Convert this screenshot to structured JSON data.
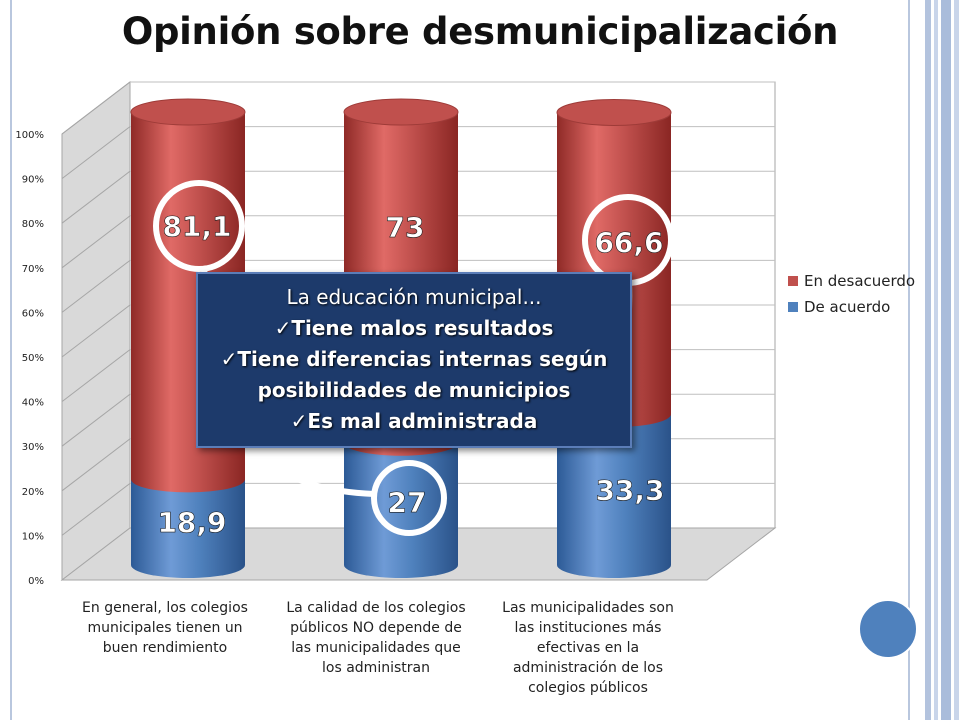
{
  "title": "Opinión sobre desmunicipalización",
  "chart_data": {
    "type": "bar",
    "stacked": true,
    "three_d": true,
    "bar_shape": "cylinder",
    "categories": [
      "En general, los colegios municipales tienen un buen rendimiento",
      "La calidad de los colegios públicos NO depende de las municipalidades que los administran",
      "Las municipalidades son las instituciones más efectivas en la administración de los colegios públicos"
    ],
    "category_lines": [
      [
        "En general, los colegios",
        "municipales tienen un",
        "buen rendimiento"
      ],
      [
        "La calidad de los colegios",
        "públicos NO depende de",
        "las municipalidades que",
        "los administran"
      ],
      [
        "Las municipalidades son",
        "las instituciones más",
        "efectivas en la",
        "administración de los",
        "colegios públicos"
      ]
    ],
    "series": [
      {
        "name": "De acuerdo",
        "values": [
          18.9,
          27,
          33.3
        ],
        "labels": [
          "18,9",
          "27",
          "33,3"
        ],
        "color": "#4f81bd"
      },
      {
        "name": "En desacuerdo",
        "values": [
          81.1,
          73,
          66.6
        ],
        "labels": [
          "81,1",
          "73",
          "66,6"
        ],
        "color": "#c0504d"
      }
    ],
    "y_ticks": [
      "0%",
      "10%",
      "20%",
      "30%",
      "40%",
      "50%",
      "60%",
      "70%",
      "80%",
      "90%",
      "100%"
    ],
    "ylim": [
      0,
      100
    ],
    "grid": true,
    "legend_position": "right"
  },
  "callout": {
    "heading": "La educación municipal...",
    "lines": [
      "✓Tiene malos resultados",
      "✓Tiene diferencias internas según",
      "posibilidades de municipios",
      "✓Es mal administrada"
    ]
  },
  "colors": {
    "accent_blue": "#4f81bd",
    "accent_red": "#c0504d",
    "callout_bg": "#1d3a6b"
  }
}
